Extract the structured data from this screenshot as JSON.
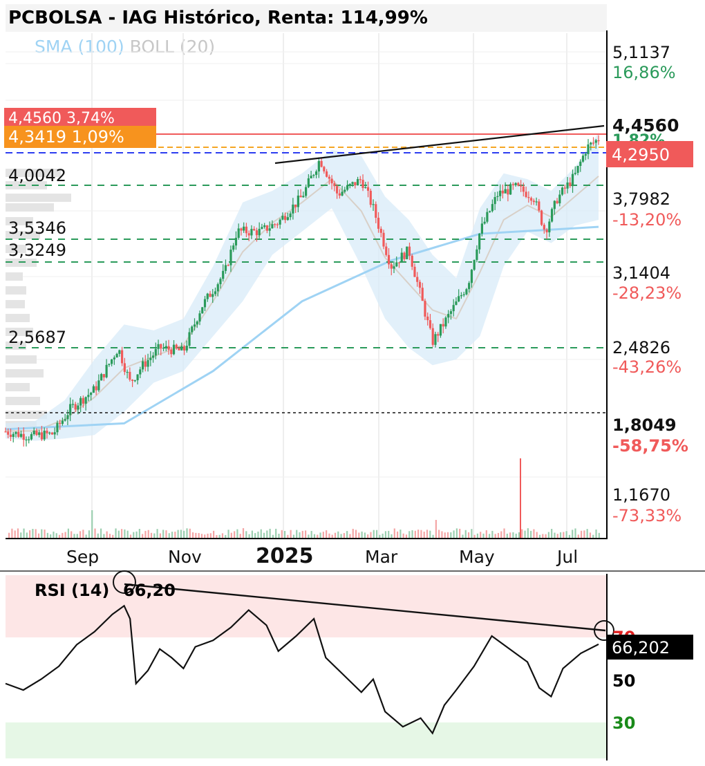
{
  "title": "PCBOLSA - IAG Histórico, Renta: 114,99%",
  "indicators": {
    "sma": "SMA (100)",
    "boll": "BOLL (20)"
  },
  "colors": {
    "up": "#2a9a5a",
    "down": "#f05a5a",
    "sma": "#9fd3f4",
    "band": "#d8ebf8",
    "volume_up": "#9ccfb0",
    "volume_down": "#f4a5a5"
  },
  "price_axis": {
    "levels": [
      {
        "price": "5,1137",
        "pct": "16,86%",
        "color": "#2a9a5a"
      },
      {
        "price": "3,7982",
        "pct": "-13,20%",
        "color": "#f05a5a"
      },
      {
        "price": "3,1404",
        "pct": "-28,23%",
        "color": "#f05a5a"
      },
      {
        "price": "2,4826",
        "pct": "-43,26%",
        "color": "#f05a5a"
      },
      {
        "price": "1,8049",
        "pct": "-58,75%",
        "color": "#f05a5a",
        "bold": true
      },
      {
        "price": "1,1670",
        "pct": "-73,33%",
        "color": "#f05a5a"
      }
    ],
    "top_level": "4,4560",
    "top_level_pct_fragment": "1,82%",
    "current_price": "4,2950"
  },
  "tags": {
    "red": "4,4560   3,74%",
    "orange": "4,3419  1,09%"
  },
  "support_labels": [
    "4,0042",
    "3,5346",
    "3,3249",
    "2,5687"
  ],
  "time_axis": [
    "Sep",
    "Nov",
    "2025",
    "Mar",
    "May",
    "Jul"
  ],
  "rsi": {
    "label": "RSI (14)",
    "value_label": "66,20",
    "value_tag": "66,202",
    "levels": [
      {
        "value": "70",
        "color": "#e02020"
      },
      {
        "value": "50",
        "color": "#000000"
      },
      {
        "value": "30",
        "color": "#1a8a1a"
      }
    ]
  },
  "chart_data": {
    "type": "candlestick",
    "title": "PCBOLSA - IAG Histórico, Renta: 114,99%",
    "price_range": [
      0.9,
      5.3
    ],
    "x_labels": [
      "Sep",
      "Nov",
      "2025",
      "Mar",
      "May",
      "Jul"
    ],
    "close_path": [
      [
        0,
        1.78
      ],
      [
        0.04,
        1.74
      ],
      [
        0.08,
        1.76
      ],
      [
        0.11,
        1.98
      ],
      [
        0.15,
        2.14
      ],
      [
        0.19,
        2.5
      ],
      [
        0.21,
        2.2
      ],
      [
        0.23,
        2.34
      ],
      [
        0.26,
        2.5
      ],
      [
        0.3,
        2.47
      ],
      [
        0.33,
        2.85
      ],
      [
        0.37,
        3.15
      ],
      [
        0.39,
        3.5
      ],
      [
        0.43,
        3.5
      ],
      [
        0.46,
        3.58
      ],
      [
        0.5,
        3.8
      ],
      [
        0.53,
        4.12
      ],
      [
        0.56,
        3.82
      ],
      [
        0.6,
        3.95
      ],
      [
        0.62,
        3.7
      ],
      [
        0.65,
        3.2
      ],
      [
        0.68,
        3.34
      ],
      [
        0.7,
        2.95
      ],
      [
        0.72,
        2.55
      ],
      [
        0.75,
        2.8
      ],
      [
        0.78,
        3.05
      ],
      [
        0.8,
        3.5
      ],
      [
        0.83,
        3.82
      ],
      [
        0.86,
        3.88
      ],
      [
        0.89,
        3.8
      ],
      [
        0.91,
        3.5
      ],
      [
        0.93,
        3.78
      ],
      [
        0.96,
        3.98
      ],
      [
        0.98,
        4.22
      ],
      [
        1,
        4.295
      ]
    ],
    "sma_path": [
      [
        0,
        1.8
      ],
      [
        0.2,
        1.85
      ],
      [
        0.35,
        2.3
      ],
      [
        0.5,
        2.9
      ],
      [
        0.65,
        3.25
      ],
      [
        0.8,
        3.48
      ],
      [
        1,
        3.54
      ]
    ],
    "resistance_line": [
      [
        0.45,
        4.07
      ],
      [
        1,
        4.42
      ]
    ],
    "horizontal_levels": [
      4.456,
      4.3419,
      4.295,
      4.0042,
      3.5346,
      3.3249,
      2.5687,
      1.8049
    ],
    "rsi_series": [
      [
        0,
        48
      ],
      [
        0.03,
        45
      ],
      [
        0.06,
        50
      ],
      [
        0.09,
        56
      ],
      [
        0.12,
        66
      ],
      [
        0.15,
        72
      ],
      [
        0.18,
        80
      ],
      [
        0.2,
        84
      ],
      [
        0.21,
        78
      ],
      [
        0.22,
        48
      ],
      [
        0.24,
        54
      ],
      [
        0.26,
        64
      ],
      [
        0.28,
        60
      ],
      [
        0.3,
        55
      ],
      [
        0.32,
        65
      ],
      [
        0.35,
        68
      ],
      [
        0.38,
        74
      ],
      [
        0.41,
        82
      ],
      [
        0.44,
        75
      ],
      [
        0.46,
        63
      ],
      [
        0.49,
        70
      ],
      [
        0.52,
        78
      ],
      [
        0.54,
        60
      ],
      [
        0.57,
        52
      ],
      [
        0.6,
        44
      ],
      [
        0.62,
        50
      ],
      [
        0.64,
        35
      ],
      [
        0.67,
        28
      ],
      [
        0.7,
        32
      ],
      [
        0.72,
        25
      ],
      [
        0.74,
        38
      ],
      [
        0.76,
        45
      ],
      [
        0.79,
        56
      ],
      [
        0.82,
        70
      ],
      [
        0.85,
        64
      ],
      [
        0.88,
        58
      ],
      [
        0.9,
        46
      ],
      [
        0.92,
        42
      ],
      [
        0.94,
        55
      ],
      [
        0.97,
        62
      ],
      [
        1,
        66.2
      ]
    ],
    "rsi_trendline": [
      [
        0.2,
        85
      ],
      [
        1,
        71
      ]
    ]
  }
}
